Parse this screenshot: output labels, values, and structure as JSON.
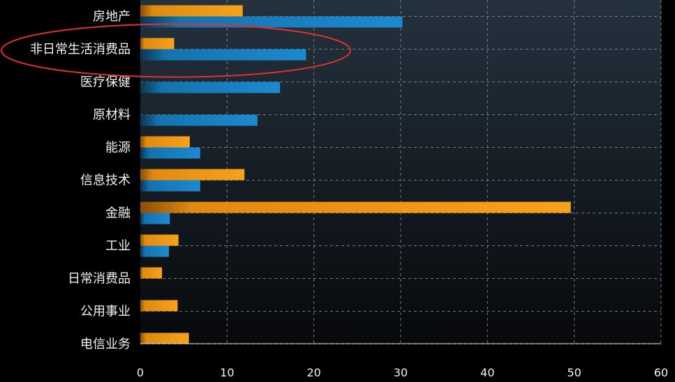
{
  "chart_data": {
    "type": "bar",
    "orientation": "horizontal",
    "categories": [
      "房地产",
      "非日常生活消费品",
      "医疗保健",
      "原材料",
      "能源",
      "信息技术",
      "金融",
      "工业",
      "日常消费品",
      "公用事业",
      "电信业务"
    ],
    "series": [
      {
        "color": "#f39c12",
        "values": [
          11.8,
          3.9,
          0,
          0,
          5.7,
          12.0,
          49.6,
          4.4,
          2.5,
          4.3,
          5.6
        ]
      },
      {
        "color": "#1a85c8",
        "values": [
          30.2,
          19.1,
          16.1,
          13.5,
          6.9,
          6.9,
          3.4,
          3.3,
          0,
          0,
          0
        ]
      }
    ],
    "xlim": [
      0,
      60
    ],
    "xticks": [
      "0",
      "10",
      "20",
      "30",
      "40",
      "50",
      "60"
    ],
    "grid": true,
    "highlight": {
      "shape": "ellipse",
      "color": "#e03030",
      "category": "非日常生活消费品"
    }
  }
}
